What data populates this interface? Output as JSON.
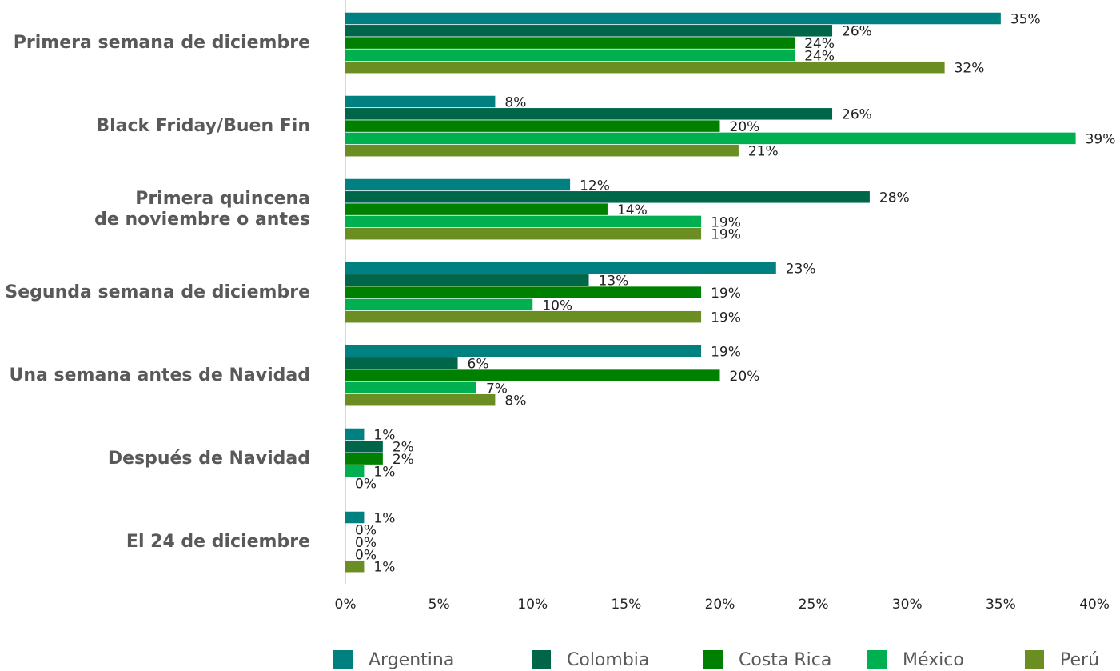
{
  "chart_data": {
    "type": "barh",
    "categories": [
      "Primera semana de diciembre",
      "Black Friday/Buen Fin",
      "Primera quincena\nde noviembre o antes",
      "Segunda semana de diciembre",
      "Una semana antes de Navidad",
      "Después de Navidad",
      "El 24 de diciembre"
    ],
    "series": [
      {
        "name": "Argentina",
        "color": "#008080",
        "values": [
          35,
          8,
          12,
          23,
          19,
          1,
          1
        ],
        "value_labels": [
          "35%",
          "8%",
          "12%",
          "23%",
          "19%",
          "1%",
          "1%"
        ]
      },
      {
        "name": "Colombia",
        "color": "#00664a",
        "values": [
          26,
          26,
          28,
          13,
          6,
          2,
          0
        ],
        "value_labels": [
          "26%",
          "26%",
          "28%",
          "13%",
          "6%",
          "2%",
          "0%"
        ]
      },
      {
        "name": "Costa Rica",
        "color": "#008000",
        "values": [
          24,
          20,
          14,
          19,
          20,
          2,
          0
        ],
        "value_labels": [
          "24%",
          "20%",
          "14%",
          "19%",
          "20%",
          "2%",
          "0%"
        ]
      },
      {
        "name": "México",
        "color": "#00b050",
        "values": [
          24,
          39,
          19,
          10,
          7,
          1,
          0
        ],
        "value_labels": [
          "24%",
          "39%",
          "19%",
          "10%",
          "7%",
          "1%",
          "0%"
        ]
      },
      {
        "name": "Perú",
        "color": "#6b8e23",
        "values": [
          32,
          21,
          19,
          19,
          8,
          0,
          1
        ],
        "value_labels": [
          "32%",
          "21%",
          "19%",
          "19%",
          "8%",
          "0%",
          "1%"
        ]
      }
    ],
    "xlim": [
      0,
      40
    ],
    "xticks": [
      {
        "value": 0,
        "label": "0%"
      },
      {
        "value": 5,
        "label": "5%"
      },
      {
        "value": 10,
        "label": "10%"
      },
      {
        "value": 15,
        "label": "15%"
      },
      {
        "value": 20,
        "label": "20%"
      },
      {
        "value": 25,
        "label": "25%"
      },
      {
        "value": 30,
        "label": "30%"
      },
      {
        "value": 35,
        "label": "35%"
      },
      {
        "value": 40,
        "label": "40%"
      }
    ],
    "legend": "bottom"
  }
}
